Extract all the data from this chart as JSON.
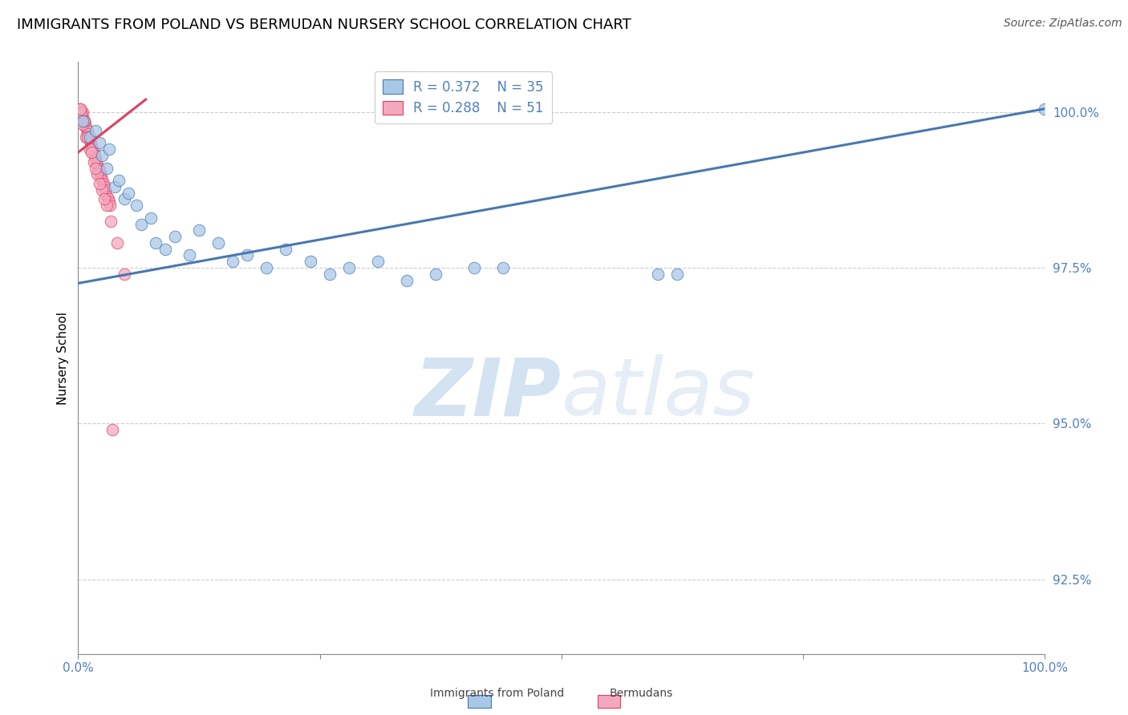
{
  "title": "IMMIGRANTS FROM POLAND VS BERMUDAN NURSERY SCHOOL CORRELATION CHART",
  "source": "Source: ZipAtlas.com",
  "ylabel": "Nursery School",
  "yticks": [
    92.5,
    95.0,
    97.5,
    100.0
  ],
  "ytick_labels": [
    "92.5%",
    "95.0%",
    "97.5%",
    "100.0%"
  ],
  "xmin": 0.0,
  "xmax": 1.0,
  "ymin": 91.3,
  "ymax": 100.8,
  "legend_blue_r": "R = 0.372",
  "legend_blue_n": "N = 35",
  "legend_pink_r": "R = 0.288",
  "legend_pink_n": "N = 51",
  "blue_color": "#a8c8e8",
  "pink_color": "#f4a8c0",
  "line_blue_color": "#4878b0",
  "line_pink_color": "#e04060",
  "blue_scatter_x": [
    0.005,
    0.012,
    0.018,
    0.022,
    0.025,
    0.03,
    0.032,
    0.038,
    0.042,
    0.048,
    0.052,
    0.06,
    0.065,
    0.075,
    0.08,
    0.09,
    0.1,
    0.115,
    0.125,
    0.145,
    0.16,
    0.175,
    0.195,
    0.215,
    0.24,
    0.26,
    0.28,
    0.31,
    0.34,
    0.37,
    0.41,
    0.44,
    0.6,
    0.62,
    1.0
  ],
  "blue_scatter_y": [
    99.85,
    99.6,
    99.7,
    99.5,
    99.3,
    99.1,
    99.4,
    98.8,
    98.9,
    98.6,
    98.7,
    98.5,
    98.2,
    98.3,
    97.9,
    97.8,
    98.0,
    97.7,
    98.1,
    97.9,
    97.6,
    97.7,
    97.5,
    97.8,
    97.6,
    97.4,
    97.5,
    97.6,
    97.3,
    97.4,
    97.5,
    97.5,
    97.4,
    97.4,
    100.05
  ],
  "pink_scatter_x": [
    0.002,
    0.003,
    0.004,
    0.005,
    0.005,
    0.006,
    0.007,
    0.008,
    0.01,
    0.01,
    0.011,
    0.012,
    0.013,
    0.014,
    0.015,
    0.016,
    0.017,
    0.018,
    0.019,
    0.02,
    0.021,
    0.022,
    0.023,
    0.024,
    0.025,
    0.026,
    0.027,
    0.028,
    0.03,
    0.031,
    0.032,
    0.033,
    0.003,
    0.005,
    0.008,
    0.012,
    0.016,
    0.02,
    0.025,
    0.03,
    0.035,
    0.002,
    0.006,
    0.01,
    0.014,
    0.018,
    0.022,
    0.027,
    0.034,
    0.04,
    0.048
  ],
  "pink_scatter_y": [
    100.05,
    100.0,
    99.95,
    99.9,
    100.0,
    99.85,
    99.8,
    99.75,
    99.7,
    99.65,
    99.6,
    99.55,
    99.5,
    99.45,
    99.4,
    99.35,
    99.3,
    99.25,
    99.2,
    99.15,
    99.1,
    99.05,
    99.0,
    98.95,
    98.9,
    98.85,
    98.8,
    98.75,
    98.65,
    98.6,
    98.55,
    98.5,
    100.0,
    99.8,
    99.6,
    99.4,
    99.2,
    99.0,
    98.75,
    98.5,
    94.9,
    100.05,
    99.85,
    99.6,
    99.35,
    99.1,
    98.85,
    98.6,
    98.25,
    97.9,
    97.4
  ],
  "blue_line_x": [
    0.0,
    1.0
  ],
  "blue_line_y": [
    97.25,
    100.05
  ],
  "pink_line_x": [
    0.0,
    0.07
  ],
  "pink_line_y": [
    99.35,
    100.2
  ],
  "watermark_zip": "ZIP",
  "watermark_atlas": "atlas",
  "title_fontsize": 13,
  "axis_label_fontsize": 11,
  "tick_fontsize": 11,
  "legend_fontsize": 12,
  "source_fontsize": 10,
  "tick_color": "#5080c0",
  "axis_color": "#888888"
}
